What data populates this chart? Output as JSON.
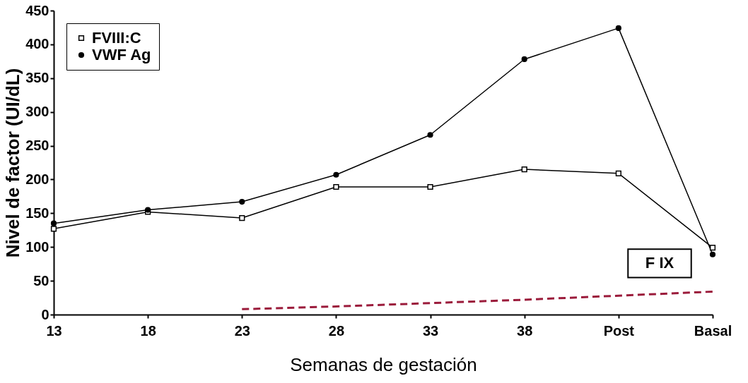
{
  "chart_data": {
    "type": "line",
    "xlabel": "Semanas de gestación",
    "ylabel": "Nivel de factor (UI/dL)",
    "categories": [
      "13",
      "18",
      "23",
      "28",
      "33",
      "38",
      "Post",
      "Basal"
    ],
    "series": [
      {
        "name": "FVIII:C",
        "color": "#000000",
        "marker": "square",
        "values": [
          127,
          152,
          143,
          189,
          189,
          215,
          209,
          99
        ]
      },
      {
        "name": "VWF Ag",
        "color": "#000000",
        "marker": "circle",
        "values": [
          135,
          155,
          167,
          207,
          266,
          378,
          424,
          89
        ]
      },
      {
        "name": "F IX",
        "color": "#9b1b3b",
        "marker": "none",
        "line_style": "dashed",
        "values": [
          null,
          null,
          8,
          12,
          17,
          22,
          28,
          34
        ]
      }
    ],
    "ylim": [
      0,
      450
    ],
    "yticks": [
      0,
      50,
      100,
      150,
      200,
      250,
      300,
      350,
      400,
      450
    ],
    "grid": false,
    "legend": "top left"
  }
}
